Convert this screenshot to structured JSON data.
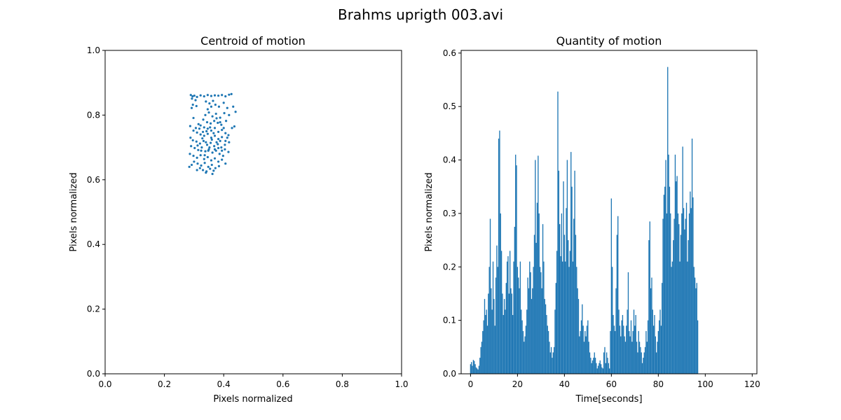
{
  "figure": {
    "title": "Brahms uprigth 003.avi"
  },
  "chart_data": [
    {
      "type": "scatter",
      "title": "Centroid of motion",
      "xlabel": "Pixels normalized",
      "ylabel": "Pixels normalized",
      "xlim": [
        0,
        1
      ],
      "ylim": [
        0,
        1
      ],
      "xticks": [
        0.0,
        0.2,
        0.4,
        0.6,
        0.8,
        1.0
      ],
      "yticks": [
        0.0,
        0.2,
        0.4,
        0.6,
        0.8,
        1.0
      ],
      "tick_labels_x": [
        "0.0",
        "0.2",
        "0.4",
        "0.6",
        "0.8",
        "1.0"
      ],
      "tick_labels_y": [
        "0.0",
        "0.2",
        "0.4",
        "0.6",
        "0.8",
        "1.0"
      ],
      "color": "#1f77b4",
      "grid": false,
      "points": [
        [
          0.289,
          0.862
        ],
        [
          0.295,
          0.858
        ],
        [
          0.301,
          0.86
        ],
        [
          0.31,
          0.856
        ],
        [
          0.322,
          0.861
        ],
        [
          0.334,
          0.858
        ],
        [
          0.346,
          0.862
        ],
        [
          0.358,
          0.859
        ],
        [
          0.37,
          0.861
        ],
        [
          0.382,
          0.86
        ],
        [
          0.394,
          0.862
        ],
        [
          0.406,
          0.858
        ],
        [
          0.418,
          0.863
        ],
        [
          0.426,
          0.865
        ],
        [
          0.293,
          0.851
        ],
        [
          0.305,
          0.846
        ],
        [
          0.296,
          0.832
        ],
        [
          0.292,
          0.822
        ],
        [
          0.308,
          0.828
        ],
        [
          0.34,
          0.842
        ],
        [
          0.352,
          0.836
        ],
        [
          0.364,
          0.844
        ],
        [
          0.358,
          0.826
        ],
        [
          0.346,
          0.818
        ],
        [
          0.372,
          0.832
        ],
        [
          0.384,
          0.826
        ],
        [
          0.4,
          0.838
        ],
        [
          0.412,
          0.822
        ],
        [
          0.432,
          0.826
        ],
        [
          0.44,
          0.81
        ],
        [
          0.418,
          0.8
        ],
        [
          0.402,
          0.806
        ],
        [
          0.35,
          0.808
        ],
        [
          0.338,
          0.8
        ],
        [
          0.362,
          0.796
        ],
        [
          0.374,
          0.804
        ],
        [
          0.388,
          0.792
        ],
        [
          0.331,
          0.786
        ],
        [
          0.344,
          0.778
        ],
        [
          0.356,
          0.774
        ],
        [
          0.368,
          0.782
        ],
        [
          0.38,
          0.776
        ],
        [
          0.392,
          0.77
        ],
        [
          0.408,
          0.782
        ],
        [
          0.436,
          0.765
        ],
        [
          0.428,
          0.76
        ],
        [
          0.298,
          0.791
        ],
        [
          0.315,
          0.772
        ],
        [
          0.287,
          0.766
        ],
        [
          0.322,
          0.768
        ],
        [
          0.334,
          0.762
        ],
        [
          0.346,
          0.758
        ],
        [
          0.358,
          0.752
        ],
        [
          0.37,
          0.76
        ],
        [
          0.382,
          0.748
        ],
        [
          0.394,
          0.754
        ],
        [
          0.406,
          0.744
        ],
        [
          0.416,
          0.738
        ],
        [
          0.298,
          0.752
        ],
        [
          0.31,
          0.746
        ],
        [
          0.322,
          0.74
        ],
        [
          0.334,
          0.736
        ],
        [
          0.346,
          0.742
        ],
        [
          0.358,
          0.73
        ],
        [
          0.37,
          0.736
        ],
        [
          0.382,
          0.726
        ],
        [
          0.394,
          0.732
        ],
        [
          0.406,
          0.72
        ],
        [
          0.418,
          0.716
        ],
        [
          0.288,
          0.73
        ],
        [
          0.296,
          0.722
        ],
        [
          0.308,
          0.718
        ],
        [
          0.32,
          0.712
        ],
        [
          0.332,
          0.72
        ],
        [
          0.344,
          0.708
        ],
        [
          0.356,
          0.714
        ],
        [
          0.368,
          0.704
        ],
        [
          0.38,
          0.71
        ],
        [
          0.392,
          0.7
        ],
        [
          0.404,
          0.694
        ],
        [
          0.29,
          0.704
        ],
        [
          0.302,
          0.698
        ],
        [
          0.314,
          0.692
        ],
        [
          0.326,
          0.7
        ],
        [
          0.338,
          0.688
        ],
        [
          0.35,
          0.694
        ],
        [
          0.362,
          0.684
        ],
        [
          0.374,
          0.69
        ],
        [
          0.386,
          0.68
        ],
        [
          0.398,
          0.674
        ],
        [
          0.416,
          0.686
        ],
        [
          0.286,
          0.68
        ],
        [
          0.298,
          0.674
        ],
        [
          0.31,
          0.668
        ],
        [
          0.322,
          0.676
        ],
        [
          0.334,
          0.664
        ],
        [
          0.346,
          0.67
        ],
        [
          0.358,
          0.66
        ],
        [
          0.37,
          0.666
        ],
        [
          0.382,
          0.656
        ],
        [
          0.394,
          0.662
        ],
        [
          0.406,
          0.65
        ],
        [
          0.3,
          0.656
        ],
        [
          0.312,
          0.65
        ],
        [
          0.324,
          0.644
        ],
        [
          0.336,
          0.652
        ],
        [
          0.348,
          0.64
        ],
        [
          0.36,
          0.646
        ],
        [
          0.372,
          0.636
        ],
        [
          0.384,
          0.642
        ],
        [
          0.284,
          0.64
        ],
        [
          0.292,
          0.646
        ],
        [
          0.33,
          0.63
        ],
        [
          0.342,
          0.626
        ],
        [
          0.354,
          0.634
        ],
        [
          0.366,
          0.628
        ],
        [
          0.362,
          0.618
        ],
        [
          0.34,
          0.622
        ],
        [
          0.32,
          0.636
        ],
        [
          0.31,
          0.63
        ],
        [
          0.352,
          0.7
        ],
        [
          0.34,
          0.716
        ],
        [
          0.328,
          0.728
        ],
        [
          0.36,
          0.724
        ],
        [
          0.348,
          0.69
        ],
        [
          0.336,
          0.676
        ],
        [
          0.324,
          0.69
        ],
        [
          0.312,
          0.706
        ],
        [
          0.376,
          0.716
        ],
        [
          0.388,
          0.72
        ],
        [
          0.366,
          0.744
        ],
        [
          0.354,
          0.762
        ],
        [
          0.342,
          0.75
        ],
        [
          0.33,
          0.748
        ],
        [
          0.318,
          0.758
        ],
        [
          0.306,
          0.76
        ],
        [
          0.37,
          0.694
        ],
        [
          0.382,
          0.698
        ],
        [
          0.394,
          0.69
        ],
        [
          0.404,
          0.708
        ],
        [
          0.412,
          0.73
        ],
        [
          0.4,
          0.76
        ],
        [
          0.388,
          0.778
        ],
        [
          0.376,
          0.79
        ]
      ]
    },
    {
      "type": "bar",
      "title": "Quantity of motion",
      "xlabel": "Time[seconds]",
      "ylabel": "Pixels normalized",
      "xlim": [
        -4,
        122
      ],
      "ylim": [
        0,
        0.605
      ],
      "xticks": [
        0,
        20,
        40,
        60,
        80,
        100,
        120
      ],
      "yticks": [
        0.0,
        0.1,
        0.2,
        0.3,
        0.4,
        0.5,
        0.6
      ],
      "tick_labels_x": [
        "0",
        "20",
        "40",
        "60",
        "80",
        "100",
        "120"
      ],
      "tick_labels_y": [
        "0.0",
        "0.1",
        "0.2",
        "0.3",
        "0.4",
        "0.5",
        "0.6"
      ],
      "color": "#1f77b4",
      "grid": false,
      "bar_width": 0.4,
      "x_start": 0,
      "x_step": 0.4,
      "values": [
        0.018,
        0.022,
        0.015,
        0.026,
        0.024,
        0.018,
        0.012,
        0.01,
        0.008,
        0.015,
        0.03,
        0.05,
        0.06,
        0.08,
        0.1,
        0.14,
        0.11,
        0.12,
        0.09,
        0.15,
        0.2,
        0.29,
        0.16,
        0.12,
        0.21,
        0.14,
        0.09,
        0.18,
        0.24,
        0.2,
        0.44,
        0.455,
        0.3,
        0.23,
        0.15,
        0.11,
        0.14,
        0.12,
        0.17,
        0.21,
        0.22,
        0.15,
        0.23,
        0.16,
        0.15,
        0.11,
        0.21,
        0.275,
        0.41,
        0.39,
        0.2,
        0.18,
        0.16,
        0.21,
        0.12,
        0.1,
        0.08,
        0.06,
        0.07,
        0.09,
        0.12,
        0.18,
        0.16,
        0.21,
        0.19,
        0.14,
        0.16,
        0.2,
        0.26,
        0.4,
        0.245,
        0.32,
        0.408,
        0.3,
        0.2,
        0.19,
        0.16,
        0.28,
        0.21,
        0.14,
        0.13,
        0.11,
        0.09,
        0.08,
        0.06,
        0.04,
        0.05,
        0.03,
        0.04,
        0.05,
        0.12,
        0.17,
        0.23,
        0.528,
        0.38,
        0.28,
        0.22,
        0.3,
        0.21,
        0.36,
        0.26,
        0.21,
        0.31,
        0.4,
        0.25,
        0.2,
        0.23,
        0.415,
        0.35,
        0.21,
        0.29,
        0.38,
        0.26,
        0.2,
        0.16,
        0.14,
        0.07,
        0.08,
        0.1,
        0.13,
        0.09,
        0.06,
        0.08,
        0.07,
        0.09,
        0.1,
        0.06,
        0.04,
        0.03,
        0.02,
        0.025,
        0.03,
        0.04,
        0.03,
        0.02,
        0.01,
        0.015,
        0.02,
        0.025,
        0.018,
        0.012,
        0.01,
        0.04,
        0.05,
        0.02,
        0.04,
        0.03,
        0.02,
        0.01,
        0.08,
        0.328,
        0.2,
        0.11,
        0.09,
        0.08,
        0.16,
        0.26,
        0.295,
        0.12,
        0.09,
        0.07,
        0.1,
        0.11,
        0.09,
        0.07,
        0.06,
        0.09,
        0.12,
        0.19,
        0.08,
        0.07,
        0.1,
        0.06,
        0.08,
        0.12,
        0.09,
        0.11,
        0.06,
        0.04,
        0.08,
        0.06,
        0.05,
        0.04,
        0.02,
        0.03,
        0.04,
        0.05,
        0.08,
        0.06,
        0.1,
        0.25,
        0.285,
        0.16,
        0.18,
        0.12,
        0.09,
        0.11,
        0.07,
        0.04,
        0.06,
        0.08,
        0.1,
        0.12,
        0.09,
        0.17,
        0.29,
        0.335,
        0.35,
        0.4,
        0.3,
        0.574,
        0.41,
        0.35,
        0.3,
        0.2,
        0.21,
        0.25,
        0.29,
        0.41,
        0.36,
        0.37,
        0.3,
        0.28,
        0.21,
        0.26,
        0.3,
        0.425,
        0.31,
        0.27,
        0.29,
        0.32,
        0.21,
        0.25,
        0.3,
        0.341,
        0.31,
        0.44,
        0.33,
        0.2,
        0.18,
        0.16,
        0.17,
        0.1
      ]
    }
  ]
}
